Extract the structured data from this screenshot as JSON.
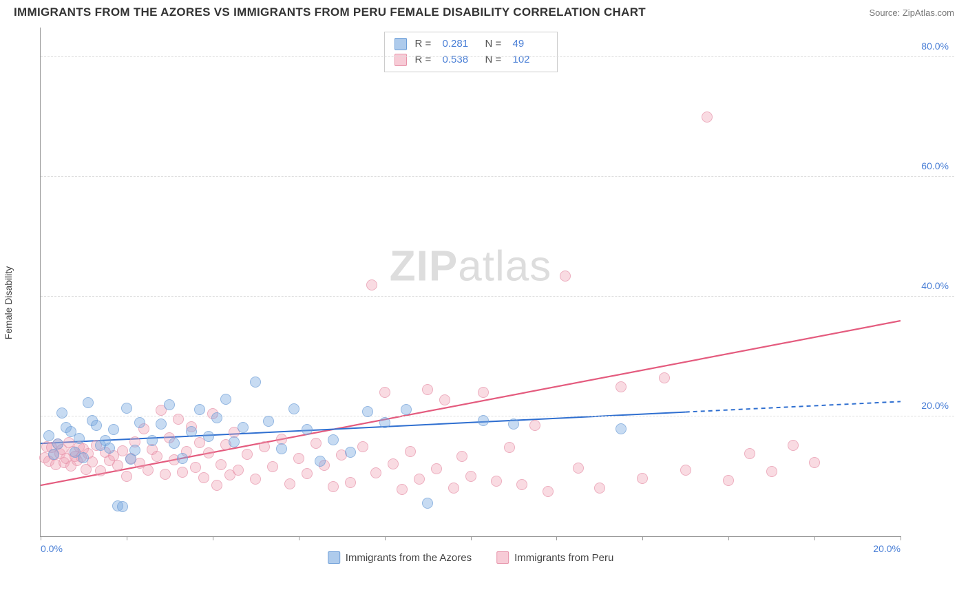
{
  "title": "IMMIGRANTS FROM THE AZORES VS IMMIGRANTS FROM PERU FEMALE DISABILITY CORRELATION CHART",
  "source": "Source: ZipAtlas.com",
  "watermark": {
    "zip": "ZIP",
    "atlas": "atlas"
  },
  "y_axis_label": "Female Disability",
  "chart": {
    "type": "scatter",
    "xlim": [
      0,
      20
    ],
    "ylim": [
      0,
      85
    ],
    "x_ticks": [
      0,
      2,
      4,
      6,
      8,
      10,
      12,
      14,
      16,
      18,
      20
    ],
    "x_tick_labels": {
      "0": "0.0%",
      "20": "20.0%"
    },
    "y_grid": [
      20,
      40,
      60,
      80
    ],
    "y_tick_labels": {
      "20": "20.0%",
      "40": "40.0%",
      "60": "60.0%",
      "80": "80.0%"
    },
    "background_color": "#ffffff",
    "grid_color": "#dddddd",
    "axis_color": "#999999",
    "marker_size": 16,
    "colors": {
      "blue_fill": "rgba(120,168,224,0.55)",
      "blue_stroke": "#6f9fd8",
      "pink_fill": "rgba(240,160,180,0.5)",
      "pink_stroke": "#e794aa",
      "blue_line": "#2f6fd0",
      "pink_line": "#e45b7e",
      "tick_text": "#4a7fd6"
    },
    "trend_blue": {
      "y_at_x0": 15.5,
      "y_at_x20": 22.5,
      "width": 2,
      "dash_after_x": 15
    },
    "trend_pink": {
      "y_at_x0": 8.5,
      "y_at_x20": 36.0,
      "width": 2.2
    }
  },
  "stats_legend": {
    "rows": [
      {
        "swatch": "blue",
        "r_label": "R =",
        "r": "0.281",
        "n_label": "N =",
        "n": "49"
      },
      {
        "swatch": "pink",
        "r_label": "R =",
        "r": "0.538",
        "n_label": "N =",
        "n": "102"
      }
    ]
  },
  "bottom_legend": {
    "items": [
      {
        "swatch": "blue",
        "label": "Immigrants from the Azores"
      },
      {
        "swatch": "pink",
        "label": "Immigrants from Peru"
      }
    ]
  },
  "series": {
    "blue": [
      [
        0.2,
        16.8
      ],
      [
        0.3,
        13.7
      ],
      [
        0.4,
        15.4
      ],
      [
        0.5,
        20.6
      ],
      [
        0.6,
        18.2
      ],
      [
        0.7,
        17.5
      ],
      [
        0.8,
        14.0
      ],
      [
        0.9,
        16.3
      ],
      [
        1.0,
        13.1
      ],
      [
        1.1,
        22.3
      ],
      [
        1.2,
        19.3
      ],
      [
        1.3,
        18.5
      ],
      [
        1.4,
        15.2
      ],
      [
        1.5,
        16.0
      ],
      [
        1.6,
        14.7
      ],
      [
        1.7,
        17.8
      ],
      [
        1.8,
        5.1
      ],
      [
        1.9,
        5.0
      ],
      [
        2.0,
        21.4
      ],
      [
        2.1,
        12.9
      ],
      [
        2.2,
        14.4
      ],
      [
        2.3,
        19.0
      ],
      [
        2.6,
        16.0
      ],
      [
        2.8,
        18.8
      ],
      [
        3.0,
        22.0
      ],
      [
        3.1,
        15.5
      ],
      [
        3.3,
        13.0
      ],
      [
        3.5,
        17.5
      ],
      [
        3.7,
        21.2
      ],
      [
        3.9,
        16.7
      ],
      [
        4.1,
        19.8
      ],
      [
        4.3,
        22.9
      ],
      [
        4.5,
        15.8
      ],
      [
        4.7,
        18.2
      ],
      [
        5.0,
        25.8
      ],
      [
        5.3,
        19.2
      ],
      [
        5.6,
        14.6
      ],
      [
        5.9,
        21.3
      ],
      [
        6.2,
        17.8
      ],
      [
        6.5,
        12.5
      ],
      [
        6.8,
        16.1
      ],
      [
        7.2,
        14.0
      ],
      [
        7.6,
        20.8
      ],
      [
        8.0,
        19.0
      ],
      [
        8.5,
        21.2
      ],
      [
        9.0,
        5.5
      ],
      [
        10.3,
        19.3
      ],
      [
        11.0,
        18.8
      ],
      [
        13.5,
        17.9
      ]
    ],
    "pink": [
      [
        0.1,
        13.1
      ],
      [
        0.15,
        15.0
      ],
      [
        0.2,
        12.5
      ],
      [
        0.25,
        14.8
      ],
      [
        0.3,
        13.6
      ],
      [
        0.35,
        12.0
      ],
      [
        0.4,
        15.4
      ],
      [
        0.45,
        13.8
      ],
      [
        0.5,
        14.5
      ],
      [
        0.55,
        12.3
      ],
      [
        0.6,
        13.0
      ],
      [
        0.65,
        15.6
      ],
      [
        0.7,
        11.7
      ],
      [
        0.75,
        14.1
      ],
      [
        0.8,
        13.4
      ],
      [
        0.85,
        12.7
      ],
      [
        0.9,
        15.0
      ],
      [
        0.95,
        13.2
      ],
      [
        1.0,
        14.6
      ],
      [
        1.05,
        11.2
      ],
      [
        1.1,
        13.8
      ],
      [
        1.2,
        12.4
      ],
      [
        1.3,
        15.2
      ],
      [
        1.4,
        10.9
      ],
      [
        1.5,
        14.0
      ],
      [
        1.6,
        12.6
      ],
      [
        1.7,
        13.5
      ],
      [
        1.8,
        11.8
      ],
      [
        1.9,
        14.3
      ],
      [
        2.0,
        10.0
      ],
      [
        2.1,
        13.0
      ],
      [
        2.2,
        15.8
      ],
      [
        2.3,
        12.2
      ],
      [
        2.4,
        18.0
      ],
      [
        2.5,
        11.0
      ],
      [
        2.6,
        14.5
      ],
      [
        2.7,
        13.3
      ],
      [
        2.8,
        21.0
      ],
      [
        2.9,
        10.4
      ],
      [
        3.0,
        16.5
      ],
      [
        3.1,
        12.8
      ],
      [
        3.2,
        19.5
      ],
      [
        3.3,
        10.7
      ],
      [
        3.4,
        14.1
      ],
      [
        3.5,
        18.3
      ],
      [
        3.6,
        11.5
      ],
      [
        3.7,
        15.7
      ],
      [
        3.8,
        9.8
      ],
      [
        3.9,
        13.9
      ],
      [
        4.0,
        20.5
      ],
      [
        4.1,
        8.5
      ],
      [
        4.2,
        12.0
      ],
      [
        4.3,
        15.3
      ],
      [
        4.4,
        10.2
      ],
      [
        4.5,
        17.4
      ],
      [
        4.6,
        11.1
      ],
      [
        4.8,
        13.7
      ],
      [
        5.0,
        9.5
      ],
      [
        5.2,
        14.9
      ],
      [
        5.4,
        11.6
      ],
      [
        5.6,
        16.2
      ],
      [
        5.8,
        8.8
      ],
      [
        6.0,
        13.0
      ],
      [
        6.2,
        10.5
      ],
      [
        6.4,
        15.5
      ],
      [
        6.6,
        11.9
      ],
      [
        6.8,
        8.3
      ],
      [
        7.0,
        13.6
      ],
      [
        7.2,
        9.0
      ],
      [
        7.5,
        15.0
      ],
      [
        7.7,
        42.0
      ],
      [
        7.8,
        10.6
      ],
      [
        8.0,
        24.0
      ],
      [
        8.2,
        12.1
      ],
      [
        8.4,
        7.8
      ],
      [
        8.6,
        14.2
      ],
      [
        8.8,
        9.6
      ],
      [
        9.0,
        24.5
      ],
      [
        9.2,
        11.3
      ],
      [
        9.4,
        22.8
      ],
      [
        9.6,
        8.1
      ],
      [
        9.8,
        13.4
      ],
      [
        10.0,
        10.0
      ],
      [
        10.3,
        24.0
      ],
      [
        10.6,
        9.2
      ],
      [
        10.9,
        14.8
      ],
      [
        11.2,
        8.6
      ],
      [
        11.5,
        18.5
      ],
      [
        11.8,
        7.5
      ],
      [
        12.2,
        43.5
      ],
      [
        12.5,
        11.4
      ],
      [
        13.0,
        8.0
      ],
      [
        13.5,
        25.0
      ],
      [
        14.0,
        9.7
      ],
      [
        14.5,
        26.5
      ],
      [
        15.0,
        11.0
      ],
      [
        15.5,
        70.0
      ],
      [
        16.0,
        9.3
      ],
      [
        16.5,
        13.8
      ],
      [
        17.0,
        10.8
      ],
      [
        17.5,
        15.2
      ],
      [
        18.0,
        12.3
      ]
    ]
  }
}
